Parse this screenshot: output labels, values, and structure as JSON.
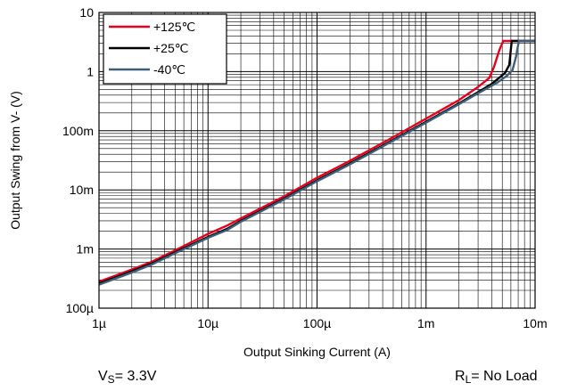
{
  "chart_data": {
    "type": "line",
    "title": "",
    "xlabel": "Output Sinking Current (A)",
    "ylabel": "Output Swing from V- (V)",
    "x_scale": "log",
    "y_scale": "log",
    "xlim": [
      1e-06,
      0.01
    ],
    "ylim": [
      0.0001,
      10
    ],
    "x_ticks": [
      {
        "value": 1e-06,
        "label": "1µ"
      },
      {
        "value": 1e-05,
        "label": "10µ"
      },
      {
        "value": 0.0001,
        "label": "100µ"
      },
      {
        "value": 0.001,
        "label": "1m"
      },
      {
        "value": 0.01,
        "label": "10m"
      }
    ],
    "y_ticks": [
      {
        "value": 0.0001,
        "label": "100µ"
      },
      {
        "value": 0.001,
        "label": "1m"
      },
      {
        "value": 0.01,
        "label": "10m"
      },
      {
        "value": 0.1,
        "label": "100m"
      },
      {
        "value": 1,
        "label": "1"
      },
      {
        "value": 10,
        "label": "10"
      }
    ],
    "grid": true,
    "legend_position": "top-left",
    "series": [
      {
        "name": "+125℃",
        "color": "#e8001c",
        "points": [
          [
            1e-06,
            0.00028
          ],
          [
            2e-06,
            0.00045
          ],
          [
            3e-06,
            0.0006
          ],
          [
            5e-06,
            0.00095
          ],
          [
            1e-05,
            0.0018
          ],
          [
            1.5e-05,
            0.0025
          ],
          [
            2e-05,
            0.0033
          ],
          [
            5e-05,
            0.0078
          ],
          [
            0.0001,
            0.016
          ],
          [
            0.0002,
            0.031
          ],
          [
            0.0005,
            0.078
          ],
          [
            0.001,
            0.16
          ],
          [
            0.002,
            0.33
          ],
          [
            0.003,
            0.55
          ],
          [
            0.0038,
            0.78
          ],
          [
            0.0042,
            1.2
          ],
          [
            0.0047,
            2.3
          ],
          [
            0.0051,
            3.3
          ],
          [
            0.0065,
            3.3
          ],
          [
            0.01,
            3.3
          ]
        ]
      },
      {
        "name": "+25℃",
        "color": "#000000",
        "points": [
          [
            1e-06,
            0.00026
          ],
          [
            2e-06,
            0.00042
          ],
          [
            3e-06,
            0.00056
          ],
          [
            5e-06,
            0.00088
          ],
          [
            1e-05,
            0.0016
          ],
          [
            1.5e-05,
            0.0022
          ],
          [
            2e-05,
            0.003
          ],
          [
            5e-05,
            0.0071
          ],
          [
            0.0001,
            0.0145
          ],
          [
            0.0002,
            0.028
          ],
          [
            0.0005,
            0.07
          ],
          [
            0.001,
            0.142
          ],
          [
            0.002,
            0.29
          ],
          [
            0.003,
            0.45
          ],
          [
            0.004,
            0.62
          ],
          [
            0.0053,
            0.95
          ],
          [
            0.0058,
            1.3
          ],
          [
            0.0061,
            3.3
          ],
          [
            0.01,
            3.3
          ]
        ]
      },
      {
        "name": "-40℃",
        "color": "#3d5f7a",
        "points": [
          [
            1e-06,
            0.00025
          ],
          [
            2e-06,
            0.0004
          ],
          [
            3e-06,
            0.00054
          ],
          [
            5e-06,
            0.00085
          ],
          [
            1e-05,
            0.00155
          ],
          [
            1.5e-05,
            0.0021
          ],
          [
            2e-05,
            0.0029
          ],
          [
            5e-05,
            0.0069
          ],
          [
            0.0001,
            0.014
          ],
          [
            0.0002,
            0.027
          ],
          [
            0.0005,
            0.068
          ],
          [
            0.001,
            0.137
          ],
          [
            0.002,
            0.28
          ],
          [
            0.003,
            0.43
          ],
          [
            0.0045,
            0.65
          ],
          [
            0.0055,
            0.85
          ],
          [
            0.0062,
            1.05
          ],
          [
            0.0067,
            1.8
          ],
          [
            0.0071,
            3.3
          ],
          [
            0.01,
            3.3
          ]
        ]
      }
    ]
  },
  "footer": {
    "supply_prefix": "V",
    "supply_sub": "S",
    "supply_value": "= 3.3V",
    "load_prefix": "R",
    "load_sub": "L",
    "load_value": "= No Load"
  }
}
